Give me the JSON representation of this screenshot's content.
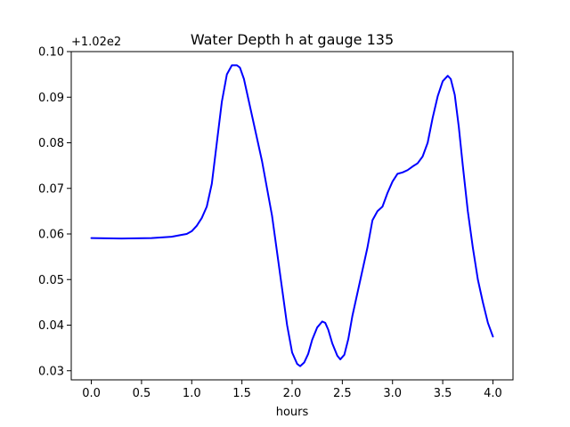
{
  "chart_data": {
    "type": "line",
    "title": "Water Depth h at gauge 135",
    "xlabel": "hours",
    "ylabel": "",
    "y_offset_label": "+1.02e2",
    "xlim": [
      -0.2,
      4.2
    ],
    "ylim": [
      0.028,
      0.1
    ],
    "xticks": [
      0.0,
      0.5,
      1.0,
      1.5,
      2.0,
      2.5,
      3.0,
      3.5,
      4.0
    ],
    "xtick_labels": [
      "0.0",
      "0.5",
      "1.0",
      "1.5",
      "2.0",
      "2.5",
      "3.0",
      "3.5",
      "4.0"
    ],
    "yticks": [
      0.03,
      0.04,
      0.05,
      0.06,
      0.07,
      0.08,
      0.09,
      0.1
    ],
    "ytick_labels": [
      "0.03",
      "0.04",
      "0.05",
      "0.06",
      "0.07",
      "0.08",
      "0.09",
      "0.10"
    ],
    "grid": false,
    "series": [
      {
        "color": "#0000ff",
        "x": [
          0.0,
          0.3,
          0.6,
          0.8,
          0.9,
          0.95,
          1.0,
          1.05,
          1.1,
          1.15,
          1.2,
          1.25,
          1.3,
          1.35,
          1.4,
          1.45,
          1.48,
          1.52,
          1.56,
          1.6,
          1.7,
          1.8,
          1.9,
          1.95,
          2.0,
          2.05,
          2.08,
          2.12,
          2.16,
          2.2,
          2.25,
          2.3,
          2.33,
          2.36,
          2.4,
          2.45,
          2.48,
          2.52,
          2.56,
          2.6,
          2.65,
          2.7,
          2.75,
          2.8,
          2.85,
          2.9,
          2.95,
          3.0,
          3.05,
          3.1,
          3.15,
          3.2,
          3.25,
          3.3,
          3.35,
          3.4,
          3.45,
          3.5,
          3.55,
          3.58,
          3.62,
          3.66,
          3.7,
          3.75,
          3.8,
          3.85,
          3.9,
          3.95,
          4.0
        ],
        "y": [
          0.0591,
          0.059,
          0.0591,
          0.0594,
          0.0598,
          0.06,
          0.0606,
          0.0618,
          0.0635,
          0.066,
          0.071,
          0.08,
          0.089,
          0.095,
          0.097,
          0.097,
          0.0965,
          0.094,
          0.09,
          0.086,
          0.076,
          0.064,
          0.048,
          0.04,
          0.034,
          0.0315,
          0.031,
          0.0318,
          0.0337,
          0.0368,
          0.0395,
          0.0408,
          0.0405,
          0.039,
          0.036,
          0.0333,
          0.0325,
          0.0335,
          0.037,
          0.042,
          0.047,
          0.052,
          0.057,
          0.063,
          0.065,
          0.066,
          0.069,
          0.0715,
          0.0732,
          0.0735,
          0.074,
          0.0748,
          0.0755,
          0.077,
          0.08,
          0.0855,
          0.0902,
          0.0935,
          0.0947,
          0.094,
          0.0905,
          0.0835,
          0.075,
          0.065,
          0.057,
          0.05,
          0.045,
          0.0405,
          0.0375
        ]
      }
    ]
  }
}
